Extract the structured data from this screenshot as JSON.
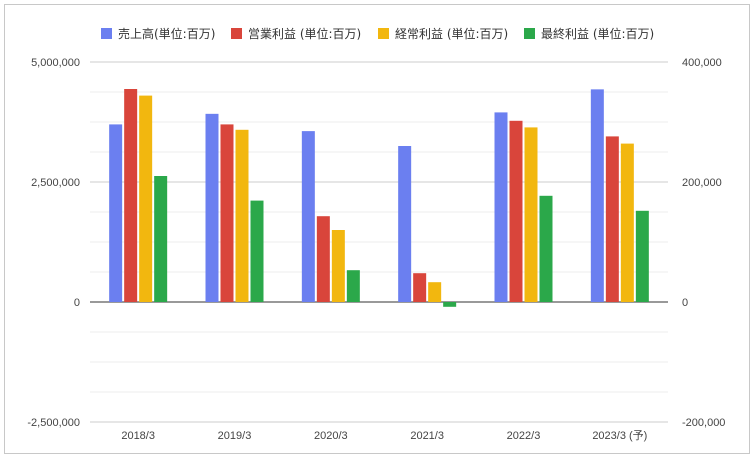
{
  "chart_data": {
    "type": "bar",
    "title": "",
    "xlabel": "",
    "ylabel": "",
    "categories": [
      "2018/3",
      "2019/3",
      "2020/3",
      "2021/3",
      "2022/3",
      "2023/3 (予)"
    ],
    "series": [
      {
        "name": "売上高(単位:百万)",
        "axis": "left",
        "color": "#6b7ff0",
        "values": [
          3700000,
          3920000,
          3560000,
          3250000,
          3950000,
          4430000
        ]
      },
      {
        "name": "営業利益 (単位:百万)",
        "axis": "right",
        "color": "#d9453b",
        "values": [
          355000,
          296000,
          143000,
          48000,
          302000,
          276000
        ]
      },
      {
        "name": "経常利益 (単位:百万)",
        "axis": "right",
        "color": "#f2b70f",
        "values": [
          344000,
          287000,
          120000,
          33000,
          291000,
          264000
        ]
      },
      {
        "name": "最終利益 (単位:百万)",
        "axis": "right",
        "color": "#2ba84a",
        "values": [
          210000,
          169000,
          53000,
          -8000,
          177000,
          152000
        ]
      }
    ],
    "ylim": [
      -2500000,
      5000000
    ],
    "y2lim": [
      -200000,
      400000
    ],
    "left_ticks": [
      "5,000,000",
      "2,500,000",
      "0",
      "-2,500,000"
    ],
    "right_ticks": [
      "400,000",
      "200,000",
      "0",
      "-200,000"
    ],
    "left_tick_values": [
      5000000,
      2500000,
      0,
      -2500000
    ],
    "right_tick_values": [
      400000,
      200000,
      0,
      -200000
    ],
    "legend_position": "top",
    "grid": true
  }
}
